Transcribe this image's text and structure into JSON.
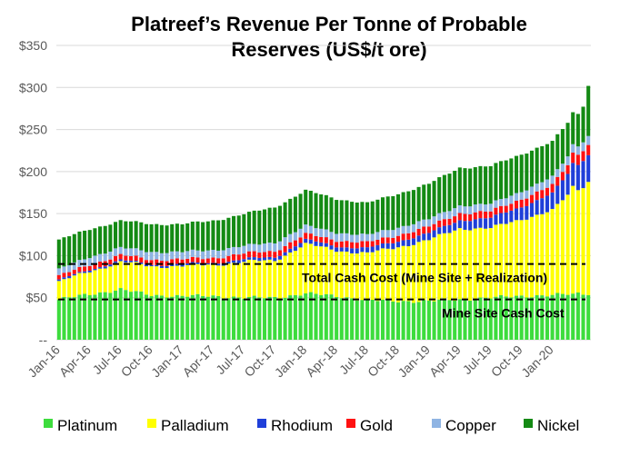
{
  "chart_data": {
    "type": "bar",
    "stacked": true,
    "title_lines": [
      "Platreef’s Revenue Per Tonne of Probable",
      "Reserves (US$/t ore)"
    ],
    "y_ticks": [
      "--",
      "$50",
      "$100",
      "$150",
      "$200",
      "$250",
      "$300",
      "$350"
    ],
    "ylim": [
      0,
      350
    ],
    "y_unit": "US$/t ore",
    "grid": true,
    "legend_position": "bottom",
    "x_tick_labels": [
      "Jan-16",
      "Apr-16",
      "Jul-16",
      "Oct-16",
      "Jan-17",
      "Apr-17",
      "Jul-17",
      "Oct-17",
      "Jan-18",
      "Apr-18",
      "Jul-18",
      "Oct-18",
      "Jan-19",
      "Apr-19",
      "Jul-19",
      "Oct-19",
      "Jan-20"
    ],
    "anchors": {
      "description": "approximate semi-monthly readings (period index, stacked value in US$/t); series are linearly interpolated between anchors",
      "period_count": 104,
      "period_index": [
        0,
        6,
        12,
        18,
        24,
        30,
        36,
        42,
        48,
        54,
        60,
        66,
        72,
        78,
        84,
        90,
        96,
        99,
        100,
        101,
        102,
        103
      ],
      "series": [
        {
          "name": "Platinum",
          "color": "#3ddc3d",
          "values": [
            48,
            54,
            60,
            53,
            52,
            52,
            50,
            50,
            55,
            52,
            47,
            46,
            46,
            48,
            50,
            52,
            53,
            54,
            54,
            55,
            55,
            55
          ]
        },
        {
          "name": "Palladium",
          "color": "#ffff00",
          "values": [
            20,
            28,
            32,
            35,
            35,
            38,
            42,
            45,
            58,
            55,
            55,
            65,
            72,
            85,
            82,
            92,
            100,
            118,
            128,
            124,
            128,
            134
          ]
        },
        {
          "name": "Rhodium",
          "color": "#1f3fd9",
          "values": [
            2,
            2,
            2,
            2,
            2,
            2,
            3,
            4,
            5,
            5,
            6,
            7,
            8,
            10,
            12,
            15,
            20,
            25,
            28,
            30,
            32,
            32
          ]
        },
        {
          "name": "Gold",
          "color": "#ff1111",
          "values": [
            5,
            6,
            6,
            6,
            6,
            6,
            7,
            7,
            7,
            7,
            7,
            7,
            8,
            8,
            8,
            9,
            10,
            11,
            12,
            12,
            12,
            12
          ]
        },
        {
          "name": "Copper",
          "color": "#8fb4e3",
          "values": [
            8,
            9,
            9,
            9,
            9,
            9,
            9,
            10,
            10,
            9,
            9,
            9,
            9,
            9,
            9,
            9,
            10,
            10,
            10,
            10,
            10,
            10
          ]
        },
        {
          "name": "Nickel",
          "color": "#148a14",
          "values": [
            35,
            33,
            32,
            33,
            33,
            35,
            38,
            42,
            42,
            40,
            38,
            40,
            42,
            45,
            45,
            44,
            42,
            40,
            38,
            38,
            42,
            60
          ]
        }
      ]
    },
    "reference_lines": [
      {
        "label": "Total Cash Cost (Mine Site + Realization)",
        "value": 90,
        "style": "dashed"
      },
      {
        "label": "Mine Site Cash Cost",
        "value": 48,
        "style": "dashed"
      }
    ]
  }
}
